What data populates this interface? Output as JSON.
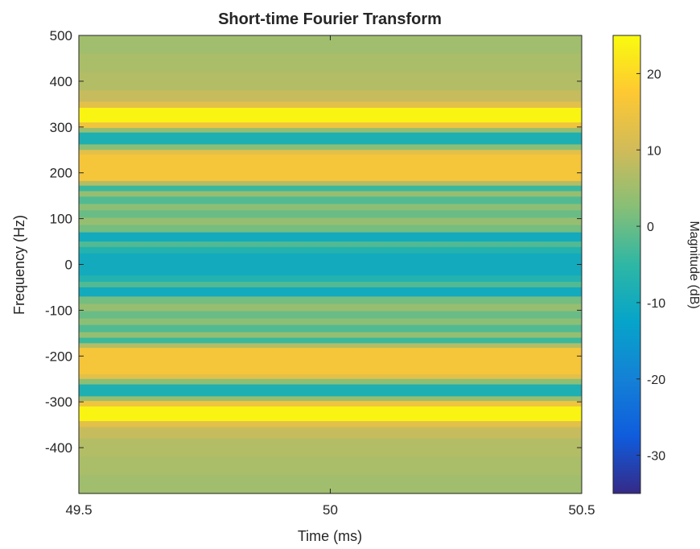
{
  "chart_data": {
    "type": "heatmap",
    "title": "Short-time Fourier Transform",
    "xlabel": "Time (ms)",
    "ylabel": "Frequency (Hz)",
    "colorbar_label": "Magnitude (dB)",
    "xlim": [
      49.5,
      50.5
    ],
    "ylim": [
      -500,
      500
    ],
    "clim": [
      -35,
      25
    ],
    "xticks": [
      49.5,
      50,
      50.5
    ],
    "xtick_labels": [
      "49.5",
      "50",
      "50.5"
    ],
    "yticks": [
      500,
      400,
      300,
      200,
      100,
      0,
      -100,
      -200,
      -300,
      -400
    ],
    "ytick_labels": [
      "500",
      "400",
      "300",
      "200",
      "100",
      "0",
      "-100",
      "-200",
      "-300",
      "-400"
    ],
    "cticks": [
      20,
      10,
      0,
      -10,
      -20,
      -30
    ],
    "ctick_labels": [
      "20",
      "10",
      "0",
      "-10",
      "-20",
      "-30"
    ],
    "colormap": "parula",
    "grid": false,
    "rows": [
      {
        "f_low": 460,
        "f_high": 500,
        "db": 5
      },
      {
        "f_low": 420,
        "f_high": 460,
        "db": 6
      },
      {
        "f_low": 380,
        "f_high": 420,
        "db": 7
      },
      {
        "f_low": 355,
        "f_high": 380,
        "db": 9
      },
      {
        "f_low": 342,
        "f_high": 355,
        "db": 13
      },
      {
        "f_low": 310,
        "f_high": 342,
        "db": 24
      },
      {
        "f_low": 298,
        "f_high": 310,
        "db": 15
      },
      {
        "f_low": 288,
        "f_high": 298,
        "db": 4
      },
      {
        "f_low": 262,
        "f_high": 288,
        "db": -8
      },
      {
        "f_low": 250,
        "f_high": 262,
        "db": 3
      },
      {
        "f_low": 240,
        "f_high": 250,
        "db": 13
      },
      {
        "f_low": 182,
        "f_high": 240,
        "db": 16
      },
      {
        "f_low": 172,
        "f_high": 182,
        "db": 7
      },
      {
        "f_low": 160,
        "f_high": 172,
        "db": -4
      },
      {
        "f_low": 148,
        "f_high": 160,
        "db": 4
      },
      {
        "f_low": 132,
        "f_high": 148,
        "db": -2
      },
      {
        "f_low": 118,
        "f_high": 132,
        "db": 3
      },
      {
        "f_low": 102,
        "f_high": 118,
        "db": 0
      },
      {
        "f_low": 86,
        "f_high": 102,
        "db": 4
      },
      {
        "f_low": 70,
        "f_high": 86,
        "db": 1
      },
      {
        "f_low": 50,
        "f_high": 70,
        "db": -10
      },
      {
        "f_low": 38,
        "f_high": 50,
        "db": -2
      },
      {
        "f_low": 24,
        "f_high": 38,
        "db": -7
      },
      {
        "f_low": -24,
        "f_high": 24,
        "db": -10
      },
      {
        "f_low": -38,
        "f_high": -24,
        "db": -7
      },
      {
        "f_low": -50,
        "f_high": -38,
        "db": -2
      },
      {
        "f_low": -70,
        "f_high": -50,
        "db": -10
      },
      {
        "f_low": -86,
        "f_high": -70,
        "db": 1
      },
      {
        "f_low": -102,
        "f_high": -86,
        "db": 4
      },
      {
        "f_low": -118,
        "f_high": -102,
        "db": 0
      },
      {
        "f_low": -132,
        "f_high": -118,
        "db": 3
      },
      {
        "f_low": -148,
        "f_high": -132,
        "db": -2
      },
      {
        "f_low": -160,
        "f_high": -148,
        "db": 4
      },
      {
        "f_low": -172,
        "f_high": -160,
        "db": -4
      },
      {
        "f_low": -182,
        "f_high": -172,
        "db": 7
      },
      {
        "f_low": -240,
        "f_high": -182,
        "db": 16
      },
      {
        "f_low": -250,
        "f_high": -240,
        "db": 13
      },
      {
        "f_low": -262,
        "f_high": -250,
        "db": 3
      },
      {
        "f_low": -288,
        "f_high": -262,
        "db": -8
      },
      {
        "f_low": -298,
        "f_high": -288,
        "db": 4
      },
      {
        "f_low": -310,
        "f_high": -298,
        "db": 15
      },
      {
        "f_low": -342,
        "f_high": -310,
        "db": 24
      },
      {
        "f_low": -355,
        "f_high": -342,
        "db": 13
      },
      {
        "f_low": -380,
        "f_high": -355,
        "db": 9
      },
      {
        "f_low": -420,
        "f_high": -380,
        "db": 7
      },
      {
        "f_low": -460,
        "f_high": -420,
        "db": 6
      },
      {
        "f_low": -500,
        "f_high": -460,
        "db": 5
      }
    ]
  }
}
